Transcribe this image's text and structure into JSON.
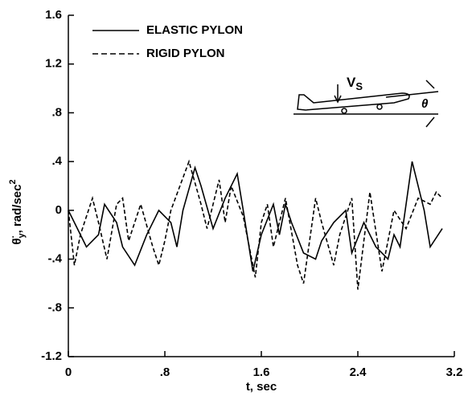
{
  "chart_data": {
    "type": "line",
    "x_label": "t, sec",
    "y_label": {
      "symbol": "θ̈",
      "subscript": "y",
      "unit": ", rad/sec",
      "superscript": "2"
    },
    "xlim": [
      0,
      3.2
    ],
    "xticks": [
      0,
      {
        "value": 0.8,
        "label": ".8"
      },
      1.6,
      2.4,
      3.2
    ],
    "ylim": [
      -1.2,
      1.6
    ],
    "yticks": [
      -1.2,
      {
        "value": -0.8,
        "label": "-.8"
      },
      {
        "value": -0.4,
        "label": "-.4"
      },
      0,
      {
        "value": 0.4,
        "label": ".4"
      },
      {
        "value": 0.8,
        "label": ".8"
      },
      1.2,
      1.6
    ],
    "legend": "top-left",
    "inset": {
      "velocity": "V",
      "velocity_subscript": "S",
      "angle": "θ"
    },
    "series": [
      {
        "name": "ELASTIC PYLON",
        "color": "#000000",
        "style": "solid",
        "x": [
          0,
          0.15,
          0.25,
          0.3,
          0.4,
          0.45,
          0.55,
          0.65,
          0.75,
          0.85,
          0.9,
          0.95,
          1.05,
          1.1,
          1.2,
          1.3,
          1.4,
          1.45,
          1.53,
          1.6,
          1.7,
          1.75,
          1.8,
          1.85,
          1.95,
          2.05,
          2.1,
          2.2,
          2.3,
          2.35,
          2.45,
          2.55,
          2.65,
          2.7,
          2.75,
          2.85,
          2.95,
          3.0,
          3.1
        ],
        "values": [
          0,
          -0.3,
          -0.2,
          0.05,
          -0.1,
          -0.3,
          -0.45,
          -0.2,
          0,
          -0.1,
          -0.3,
          0,
          0.35,
          0.2,
          -0.15,
          0.1,
          0.3,
          0,
          -0.5,
          -0.2,
          0.05,
          -0.2,
          0.05,
          -0.1,
          -0.35,
          -0.4,
          -0.25,
          -0.1,
          0,
          -0.35,
          -0.1,
          -0.3,
          -0.4,
          -0.2,
          -0.3,
          0.4,
          0,
          -0.3,
          -0.15
        ]
      },
      {
        "name": "RIGID PYLON",
        "color": "#000000",
        "style": "dashed",
        "x": [
          0,
          0.05,
          0.1,
          0.2,
          0.25,
          0.32,
          0.4,
          0.45,
          0.5,
          0.6,
          0.7,
          0.75,
          0.8,
          0.85,
          1.0,
          1.1,
          1.15,
          1.25,
          1.3,
          1.35,
          1.45,
          1.55,
          1.6,
          1.65,
          1.7,
          1.8,
          1.9,
          1.95,
          2.05,
          2.1,
          2.2,
          2.25,
          2.35,
          2.4,
          2.5,
          2.6,
          2.7,
          2.8,
          2.9,
          3.0,
          3.05,
          3.1
        ],
        "values": [
          0,
          -0.45,
          -0.2,
          0.1,
          -0.1,
          -0.4,
          0.05,
          0.1,
          -0.25,
          0.05,
          -0.3,
          -0.45,
          -0.25,
          0,
          0.4,
          0.05,
          -0.15,
          0.25,
          -0.1,
          0.2,
          -0.05,
          -0.55,
          -0.1,
          0.05,
          -0.3,
          0.1,
          -0.45,
          -0.6,
          0.1,
          -0.1,
          -0.45,
          -0.2,
          0.1,
          -0.65,
          0.15,
          -0.5,
          0,
          -0.15,
          0.1,
          0.05,
          0.15,
          0.1
        ]
      }
    ]
  }
}
